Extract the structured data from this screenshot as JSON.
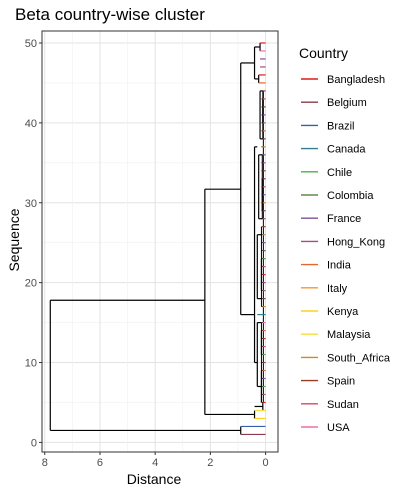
{
  "chart_data": {
    "type": "dendrogram",
    "title": "Beta country-wise cluster",
    "xlabel": "Distance",
    "ylabel": "Sequence",
    "x_reversed": true,
    "xlim": [
      8.1,
      -0.45
    ],
    "ylim": [
      -1.2,
      51.5
    ],
    "xticks": [
      8,
      6,
      4,
      2,
      0
    ],
    "yticks": [
      0,
      10,
      20,
      30,
      40,
      50
    ],
    "grid": true,
    "legend": {
      "title": "Country",
      "position": "right",
      "items": [
        {
          "label": "Bangladesh",
          "color": "#e41a1c"
        },
        {
          "label": "Belgium",
          "color": "#8c3a4a"
        },
        {
          "label": "Brazil",
          "color": "#3a5fa8"
        },
        {
          "label": "Canada",
          "color": "#2f7f8f"
        },
        {
          "label": "Chile",
          "color": "#4daf4a"
        },
        {
          "label": "Colombia",
          "color": "#5e8e4a"
        },
        {
          "label": "France",
          "color": "#7b4f9e"
        },
        {
          "label": "Hong_Kong",
          "color": "#a64d79"
        },
        {
          "label": "India",
          "color": "#e8652a"
        },
        {
          "label": "Italy",
          "color": "#f59a23"
        },
        {
          "label": "Kenya",
          "color": "#ffd11a"
        },
        {
          "label": "Malaysia",
          "color": "#f3e03b"
        },
        {
          "label": "South_Africa",
          "color": "#d08a1e"
        },
        {
          "label": "Spain",
          "color": "#9b3b26"
        },
        {
          "label": "Sudan",
          "color": "#d04a6b"
        },
        {
          "label": "USA",
          "color": "#f06eaa"
        }
      ]
    },
    "merges": [
      {
        "height": 7.8,
        "low": 1.5,
        "high": 17.8
      },
      {
        "height": 2.2,
        "low": 3.5,
        "high": 31.7
      },
      {
        "height": 0.9,
        "low": 16.0,
        "high": 47.5
      },
      {
        "height": 0.9,
        "low": 1.0,
        "high": 2.0
      },
      {
        "height": 0.4,
        "low": 3.0,
        "high": 4.0
      },
      {
        "height": 0.1,
        "low": 4.0,
        "high": 5.0
      },
      {
        "height": 0.4,
        "low": 45.5,
        "high": 49.5
      },
      {
        "height": 0.25,
        "low": 45.0,
        "high": 46.0
      },
      {
        "height": 0.2,
        "low": 49.0,
        "high": 50.0
      },
      {
        "height": 0.35,
        "low": 16.0,
        "high": 16.0
      },
      {
        "height": 0.4,
        "low": 10.0,
        "high": 37.0
      },
      {
        "height": 0.3,
        "low": 7.0,
        "high": 15.0
      },
      {
        "height": 0.3,
        "low": 18.0,
        "high": 26.0
      },
      {
        "height": 0.25,
        "low": 28.0,
        "high": 36.0
      },
      {
        "height": 0.2,
        "low": 38.0,
        "high": 44.0
      },
      {
        "height": 0.15,
        "low": 5.0,
        "high": 9.0
      },
      {
        "height": 0.15,
        "low": 11.0,
        "high": 14.0
      },
      {
        "height": 0.15,
        "low": 19.0,
        "high": 23.0
      },
      {
        "height": 0.12,
        "low": 29.0,
        "high": 33.0
      },
      {
        "height": 0.1,
        "low": 40.0,
        "high": 43.0
      }
    ],
    "leaves": [
      {
        "seq": 1,
        "from": 0.9,
        "color": "#8c3a4a"
      },
      {
        "seq": 2,
        "from": 0.9,
        "color": "#3a5fa8"
      },
      {
        "seq": 3,
        "from": 0.4,
        "color": "#ffd11a"
      },
      {
        "seq": 4,
        "from": 0.4,
        "color": "#f3e03b"
      },
      {
        "seq": 5,
        "from": 0.1,
        "color": "#e41a1c"
      },
      {
        "seq": 6,
        "from": 0.1,
        "color": "#a64d79"
      },
      {
        "seq": 7,
        "from": 0.1,
        "color": "#4daf4a"
      },
      {
        "seq": 8,
        "from": 0.1,
        "color": "#7b4f9e"
      },
      {
        "seq": 9,
        "from": 0.1,
        "color": "#e8652a"
      },
      {
        "seq": 10,
        "from": 0.1,
        "color": "#8c3a4a"
      },
      {
        "seq": 11,
        "from": 0.1,
        "color": "#4daf4a"
      },
      {
        "seq": 12,
        "from": 0.1,
        "color": "#d04a6b"
      },
      {
        "seq": 13,
        "from": 0.1,
        "color": "#9b3b26"
      },
      {
        "seq": 14,
        "from": 0.1,
        "color": "#e8652a"
      },
      {
        "seq": 15,
        "from": 0.1,
        "color": "#f06eaa"
      },
      {
        "seq": 16,
        "from": 0.3,
        "color": "#2f7f8f"
      },
      {
        "seq": 17,
        "from": 0.1,
        "color": "#d08a1e"
      },
      {
        "seq": 18,
        "from": 0.1,
        "color": "#8c3a4a"
      },
      {
        "seq": 19,
        "from": 0.1,
        "color": "#a64d79"
      },
      {
        "seq": 20,
        "from": 0.1,
        "color": "#7b4f9e"
      },
      {
        "seq": 21,
        "from": 0.1,
        "color": "#e41a1c"
      },
      {
        "seq": 22,
        "from": 0.1,
        "color": "#d04a6b"
      },
      {
        "seq": 23,
        "from": 0.1,
        "color": "#5e8e4a"
      },
      {
        "seq": 24,
        "from": 0.1,
        "color": "#8c3a4a"
      },
      {
        "seq": 25,
        "from": 0.1,
        "color": "#7b4f9e"
      },
      {
        "seq": 26,
        "from": 0.1,
        "color": "#d08a1e"
      },
      {
        "seq": 27,
        "from": 0.1,
        "color": "#9b3b26"
      },
      {
        "seq": 28,
        "from": 0.1,
        "color": "#a64d79"
      },
      {
        "seq": 29,
        "from": 0.1,
        "color": "#8c3a4a"
      },
      {
        "seq": 30,
        "from": 0.1,
        "color": "#e8652a"
      },
      {
        "seq": 31,
        "from": 0.1,
        "color": "#7b4f9e"
      },
      {
        "seq": 32,
        "from": 0.1,
        "color": "#d04a6b"
      },
      {
        "seq": 33,
        "from": 0.1,
        "color": "#8c3a4a"
      },
      {
        "seq": 34,
        "from": 0.1,
        "color": "#9b3b26"
      },
      {
        "seq": 35,
        "from": 0.1,
        "color": "#a64d79"
      },
      {
        "seq": 36,
        "from": 0.1,
        "color": "#7b4f9e"
      },
      {
        "seq": 37,
        "from": 0.1,
        "color": "#d08a1e"
      },
      {
        "seq": 38,
        "from": 0.1,
        "color": "#8c3a4a"
      },
      {
        "seq": 39,
        "from": 0.1,
        "color": "#e8652a"
      },
      {
        "seq": 40,
        "from": 0.1,
        "color": "#a64d79"
      },
      {
        "seq": 41,
        "from": 0.1,
        "color": "#7b4f9e"
      },
      {
        "seq": 42,
        "from": 0.1,
        "color": "#9b3b26"
      },
      {
        "seq": 43,
        "from": 0.1,
        "color": "#d04a6b"
      },
      {
        "seq": 44,
        "from": 0.1,
        "color": "#8c3a4a"
      },
      {
        "seq": 45,
        "from": 0.25,
        "color": "#e8652a"
      },
      {
        "seq": 46,
        "from": 0.25,
        "color": "#e41a1c"
      },
      {
        "seq": 47,
        "from": 0.2,
        "color": "#a64d79"
      },
      {
        "seq": 48,
        "from": 0.2,
        "color": "#7b4f9e"
      },
      {
        "seq": 49,
        "from": 0.2,
        "color": "#f06eaa"
      },
      {
        "seq": 50,
        "from": 0.2,
        "color": "#e41a1c"
      }
    ]
  }
}
